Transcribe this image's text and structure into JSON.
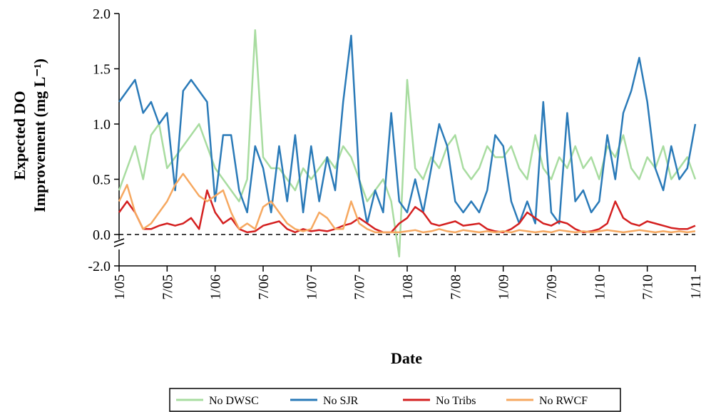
{
  "chart_data": {
    "type": "line",
    "x_label": "Date",
    "y_label": [
      "Expected DO",
      "Improvement (mg L⁻¹)"
    ],
    "x": [
      "2005-01",
      "2005-02",
      "2005-03",
      "2005-04",
      "2005-05",
      "2005-06",
      "2005-07",
      "2005-08",
      "2005-09",
      "2005-10",
      "2005-11",
      "2005-12",
      "2006-01",
      "2006-02",
      "2006-03",
      "2006-04",
      "2006-05",
      "2006-06",
      "2006-07",
      "2006-08",
      "2006-09",
      "2006-10",
      "2006-11",
      "2006-12",
      "2007-01",
      "2007-02",
      "2007-03",
      "2007-04",
      "2007-05",
      "2007-06",
      "2007-07",
      "2007-08",
      "2007-09",
      "2007-10",
      "2007-11",
      "2007-12",
      "2008-01",
      "2008-02",
      "2008-03",
      "2008-04",
      "2008-05",
      "2008-06",
      "2008-07",
      "2008-08",
      "2008-09",
      "2008-10",
      "2008-11",
      "2008-12",
      "2009-01",
      "2009-02",
      "2009-03",
      "2009-04",
      "2009-05",
      "2009-06",
      "2009-07",
      "2009-08",
      "2009-09",
      "2009-10",
      "2009-11",
      "2009-12",
      "2010-01",
      "2010-02",
      "2010-03",
      "2010-04",
      "2010-05",
      "2010-06",
      "2010-07",
      "2010-08",
      "2010-09",
      "2010-10",
      "2010-11",
      "2010-12",
      "2011-01"
    ],
    "xlim": [
      "2005-01",
      "2011-01"
    ],
    "xticks": [
      {
        "value": "2005-01",
        "label": "1/05"
      },
      {
        "value": "2005-07",
        "label": "7/05"
      },
      {
        "value": "2006-01",
        "label": "1/06"
      },
      {
        "value": "2006-07",
        "label": "7/06"
      },
      {
        "value": "2007-01",
        "label": "1/07"
      },
      {
        "value": "2007-07",
        "label": "7/07"
      },
      {
        "value": "2008-01",
        "label": "1/08"
      },
      {
        "value": "2008-07",
        "label": "7/08"
      },
      {
        "value": "2009-01",
        "label": "1/09"
      },
      {
        "value": "2009-07",
        "label": "7/09"
      },
      {
        "value": "2010-01",
        "label": "1/10"
      },
      {
        "value": "2010-07",
        "label": "7/10"
      },
      {
        "value": "2011-01",
        "label": "1/11"
      }
    ],
    "ylim": [
      -2,
      2
    ],
    "yticks": [
      {
        "value": -2,
        "label": "-2.0"
      },
      {
        "value": 0,
        "label": "0.0"
      },
      {
        "value": 0.5,
        "label": "0.5"
      },
      {
        "value": 1,
        "label": "1.0"
      },
      {
        "value": 1.5,
        "label": "1.5"
      },
      {
        "value": 2,
        "label": "2.0"
      }
    ],
    "broken_axis": true,
    "zero_line": "dashed",
    "legend": "bottom",
    "series": [
      {
        "name": "No DWSC",
        "color": "#a8dca0",
        "values": [
          0.4,
          0.6,
          0.8,
          0.5,
          0.9,
          1.0,
          0.6,
          0.7,
          0.8,
          0.9,
          1.0,
          0.8,
          0.6,
          0.5,
          0.4,
          0.3,
          0.5,
          1.85,
          0.7,
          0.6,
          0.6,
          0.5,
          0.4,
          0.6,
          0.5,
          0.6,
          0.7,
          0.6,
          0.8,
          0.7,
          0.5,
          0.3,
          0.4,
          0.5,
          0.3,
          -1.0,
          1.4,
          0.6,
          0.5,
          0.7,
          0.6,
          0.8,
          0.9,
          0.6,
          0.5,
          0.6,
          0.8,
          0.7,
          0.7,
          0.8,
          0.6,
          0.5,
          0.9,
          0.6,
          0.5,
          0.7,
          0.6,
          0.8,
          0.6,
          0.7,
          0.5,
          0.8,
          0.7,
          0.9,
          0.6,
          0.5,
          0.7,
          0.6,
          0.8,
          0.5,
          0.6,
          0.7,
          0.5
        ]
      },
      {
        "name": "No SJR",
        "color": "#2a7ab8",
        "values": [
          1.2,
          1.3,
          1.4,
          1.1,
          1.2,
          1.0,
          1.1,
          0.4,
          1.3,
          1.4,
          1.3,
          1.2,
          0.3,
          0.9,
          0.9,
          0.4,
          0.2,
          0.8,
          0.6,
          0.2,
          0.8,
          0.3,
          0.9,
          0.2,
          0.8,
          0.3,
          0.7,
          0.4,
          1.2,
          1.8,
          0.5,
          0.1,
          0.4,
          0.2,
          1.1,
          0.3,
          0.2,
          0.5,
          0.2,
          0.6,
          1.0,
          0.8,
          0.3,
          0.2,
          0.3,
          0.2,
          0.4,
          0.9,
          0.8,
          0.3,
          0.1,
          0.3,
          0.1,
          1.2,
          0.2,
          0.1,
          1.1,
          0.3,
          0.4,
          0.2,
          0.3,
          0.9,
          0.5,
          1.1,
          1.3,
          1.6,
          1.2,
          0.6,
          0.4,
          0.8,
          0.5,
          0.6,
          1.0
        ]
      },
      {
        "name": "No Tribs",
        "color": "#d42020",
        "values": [
          0.2,
          0.3,
          0.2,
          0.05,
          0.05,
          0.08,
          0.1,
          0.08,
          0.1,
          0.15,
          0.05,
          0.4,
          0.2,
          0.1,
          0.15,
          0.05,
          0.02,
          0.03,
          0.08,
          0.1,
          0.12,
          0.05,
          0.02,
          0.05,
          0.03,
          0.04,
          0.03,
          0.05,
          0.08,
          0.1,
          0.15,
          0.1,
          0.05,
          0.02,
          0.02,
          0.1,
          0.15,
          0.25,
          0.2,
          0.1,
          0.08,
          0.1,
          0.12,
          0.08,
          0.09,
          0.1,
          0.05,
          0.03,
          0.02,
          0.05,
          0.1,
          0.2,
          0.15,
          0.1,
          0.08,
          0.12,
          0.1,
          0.05,
          0.02,
          0.03,
          0.05,
          0.1,
          0.3,
          0.15,
          0.1,
          0.08,
          0.12,
          0.1,
          0.08,
          0.06,
          0.05,
          0.05,
          0.08
        ]
      },
      {
        "name": "No RWCF",
        "color": "#f6a860",
        "values": [
          0.3,
          0.45,
          0.2,
          0.05,
          0.1,
          0.2,
          0.3,
          0.45,
          0.55,
          0.45,
          0.35,
          0.3,
          0.35,
          0.4,
          0.2,
          0.05,
          0.1,
          0.05,
          0.25,
          0.3,
          0.2,
          0.1,
          0.05,
          0.03,
          0.05,
          0.2,
          0.15,
          0.05,
          0.05,
          0.3,
          0.1,
          0.05,
          0.02,
          0.02,
          0.02,
          0.02,
          0.03,
          0.04,
          0.02,
          0.03,
          0.05,
          0.03,
          0.02,
          0.04,
          0.03,
          0.02,
          0.03,
          0.02,
          0.03,
          0.02,
          0.04,
          0.03,
          0.02,
          0.03,
          0.02,
          0.04,
          0.03,
          0.02,
          0.03,
          0.02,
          0.03,
          0.04,
          0.03,
          0.02,
          0.03,
          0.04,
          0.03,
          0.02,
          0.03,
          0.02,
          0.03,
          0.02,
          0.03
        ]
      }
    ]
  }
}
